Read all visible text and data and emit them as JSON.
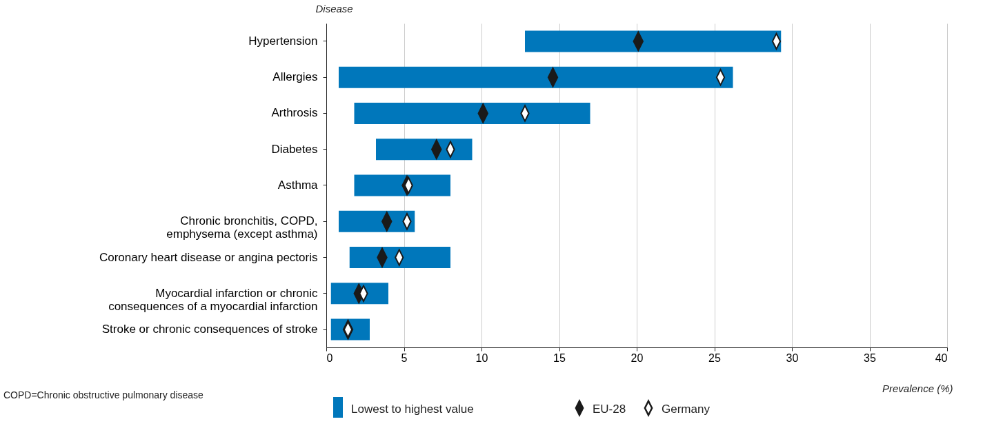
{
  "chart_data": {
    "type": "bar",
    "orientation": "horizontal",
    "ylabel": "Disease",
    "xlabel": "Prevalence (%)",
    "categories": [
      "Hypertension",
      "Allergies",
      "Arthrosis",
      "Diabetes",
      "Asthma",
      "Chronic bronchitis, COPD,\nemphysema (except asthma)",
      "Coronary heart disease or angina pectoris",
      "Myocardial infarction or chronic\nconsequences of a myocardial infarction",
      "Stroke or chronic consequences of stroke"
    ],
    "series": [
      {
        "name": "Lowest to highest value",
        "color": "#0077bb",
        "base": [
          12.8,
          0.8,
          1.8,
          3.2,
          1.8,
          0.8,
          1.5,
          0.3,
          0.3
        ],
        "values": [
          16.5,
          25.4,
          15.2,
          6.2,
          6.2,
          4.9,
          6.5,
          3.7,
          2.5
        ]
      },
      {
        "name": "EU-28",
        "type": "scatter",
        "marker": "diamond",
        "color": "#1a1a1a",
        "values": [
          20.1,
          14.6,
          10.1,
          7.1,
          5.2,
          3.9,
          3.6,
          2.1,
          1.4
        ]
      },
      {
        "name": "Germany",
        "type": "scatter",
        "marker": "diamond",
        "color": "#ffffff",
        "values": [
          29.0,
          25.4,
          12.8,
          8.0,
          5.3,
          5.2,
          4.7,
          2.4,
          1.4
        ]
      }
    ],
    "xlim": [
      0,
      40
    ],
    "xticks": [
      0,
      5,
      10,
      15,
      20,
      25,
      30,
      35,
      40
    ],
    "grid": "x",
    "legend": "bottom",
    "annotations": [
      "COPD=Chronic obstructive pulmonary disease"
    ]
  }
}
